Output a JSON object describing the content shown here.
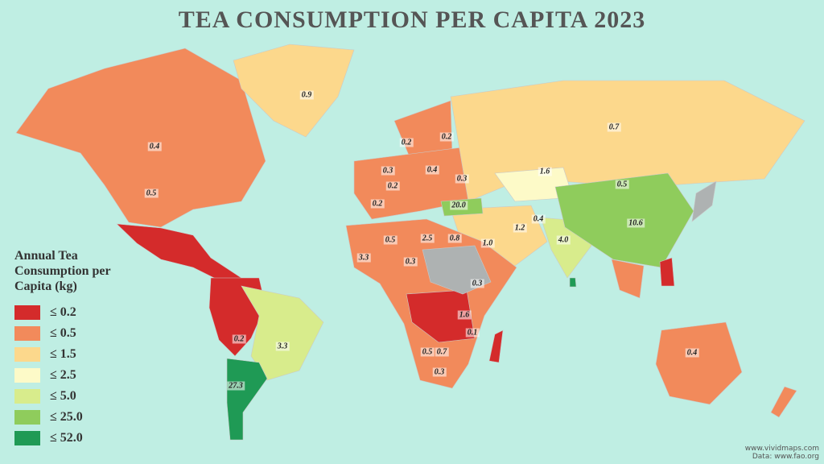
{
  "title": "TEA CONSUMPTION PER CAPITA 2023",
  "legend": {
    "title": "Annual Tea Consumption per Capita (kg)",
    "items": [
      {
        "label": "≤ 0.2",
        "color": "#d42b2b"
      },
      {
        "label": "≤ 0.5",
        "color": "#f28a5b"
      },
      {
        "label": "≤ 1.5",
        "color": "#fcd88c"
      },
      {
        "label": "≤ 2.5",
        "color": "#fdfac8"
      },
      {
        "label": "≤ 5.0",
        "color": "#d8ec8c"
      },
      {
        "label": "≤ 25.0",
        "color": "#8fcc5c"
      },
      {
        "label": "≤ 52.0",
        "color": "#1f9a55"
      }
    ]
  },
  "labels": [
    "0.9",
    "0.4",
    "0.5",
    "0.7",
    "1.6",
    "0.5",
    "0.2",
    "0.2",
    "0.3",
    "0.4",
    "0.3",
    "0.2",
    "0.2",
    "20.0",
    "0.4",
    "10.6",
    "1.2",
    "2.5",
    "0.8",
    "1.0",
    "0.5",
    "4.0",
    "3.3",
    "0.3",
    "0.3",
    "1.6",
    "0.1",
    "0.5",
    "0.7",
    "0.3",
    "0.2",
    "3.3",
    "27.3",
    "0.4"
  ],
  "credits": {
    "site": "www.vividmaps.com",
    "source": "Data: www.fao.org"
  }
}
